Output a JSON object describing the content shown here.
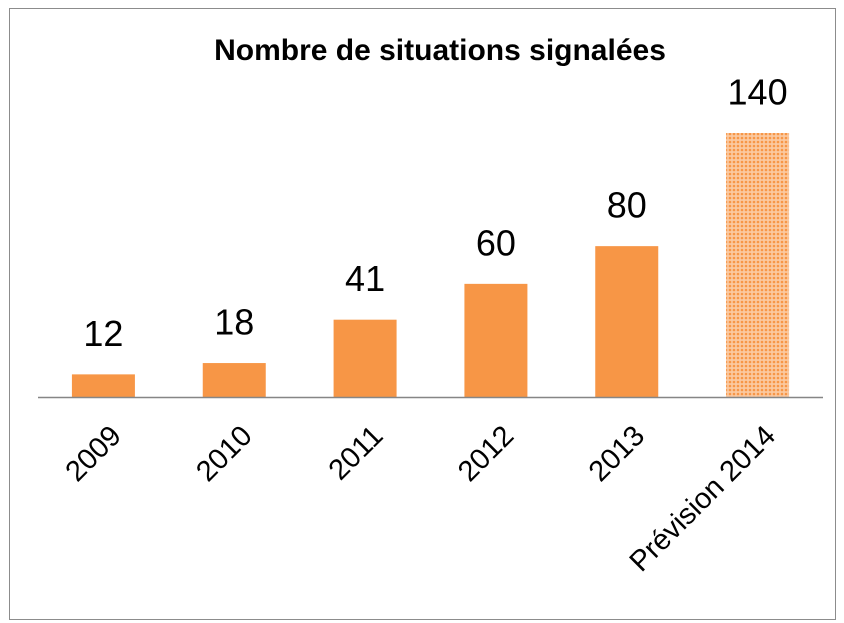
{
  "chart_data": {
    "type": "bar",
    "title": "Nombre de situations signalées",
    "categories": [
      "2009",
      "2010",
      "2011",
      "2012",
      "2013",
      "Prévision 2014"
    ],
    "values": [
      12,
      18,
      41,
      60,
      80,
      140
    ],
    "color": "#f79646",
    "patterned": [
      false,
      false,
      false,
      false,
      false,
      true
    ]
  }
}
